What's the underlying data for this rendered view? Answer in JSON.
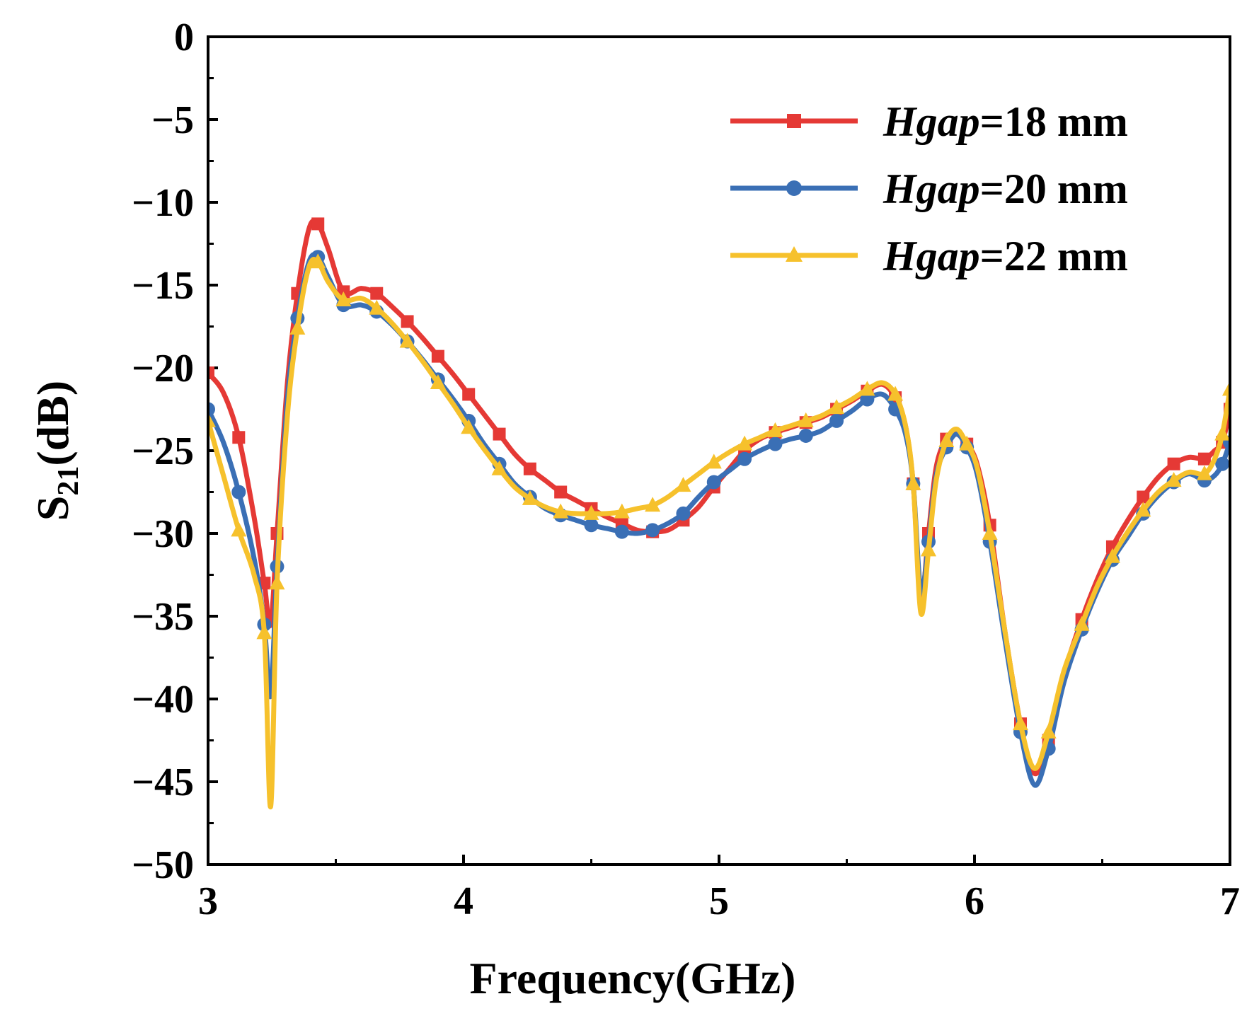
{
  "chart_data": {
    "type": "line",
    "title": "",
    "xlabel": "Frequency(GHz)",
    "ylabel_main": "S",
    "ylabel_sub": "21",
    "ylabel_unit": "(dB)",
    "xlim": [
      3,
      7
    ],
    "ylim": [
      -50,
      0
    ],
    "xticks": [
      3,
      4,
      5,
      6,
      7
    ],
    "yticks": [
      0,
      -5,
      -10,
      -15,
      -20,
      -25,
      -30,
      -35,
      -40,
      -45,
      -50
    ],
    "xtick_labels": [
      "3",
      "4",
      "5",
      "6",
      "7"
    ],
    "ytick_labels": [
      "0",
      "−5",
      "−10",
      "−15",
      "−20",
      "−25",
      "−30",
      "−35",
      "−40",
      "−45",
      "−50"
    ],
    "legend_position": "top-right",
    "series": [
      {
        "name_italic": "Hgap",
        "name_rest": "=18 mm",
        "color": "#E53935",
        "marker": "square",
        "points": [
          [
            3.0,
            -20.3
          ],
          [
            3.06,
            -21.5
          ],
          [
            3.12,
            -24.2
          ],
          [
            3.18,
            -29.0
          ],
          [
            3.22,
            -33.0
          ],
          [
            3.245,
            -35.5
          ],
          [
            3.27,
            -30.0
          ],
          [
            3.31,
            -21.0
          ],
          [
            3.35,
            -15.5
          ],
          [
            3.395,
            -11.6
          ],
          [
            3.43,
            -11.3
          ],
          [
            3.47,
            -12.8
          ],
          [
            3.53,
            -15.4
          ],
          [
            3.6,
            -15.2
          ],
          [
            3.66,
            -15.5
          ],
          [
            3.72,
            -16.3
          ],
          [
            3.78,
            -17.2
          ],
          [
            3.84,
            -18.2
          ],
          [
            3.9,
            -19.3
          ],
          [
            3.96,
            -20.4
          ],
          [
            4.02,
            -21.6
          ],
          [
            4.08,
            -22.8
          ],
          [
            4.14,
            -24.0
          ],
          [
            4.2,
            -25.2
          ],
          [
            4.26,
            -26.1
          ],
          [
            4.32,
            -26.8
          ],
          [
            4.38,
            -27.5
          ],
          [
            4.44,
            -28.0
          ],
          [
            4.5,
            -28.5
          ],
          [
            4.56,
            -29.0
          ],
          [
            4.62,
            -29.4
          ],
          [
            4.68,
            -29.8
          ],
          [
            4.74,
            -29.9
          ],
          [
            4.8,
            -29.8
          ],
          [
            4.86,
            -29.2
          ],
          [
            4.92,
            -28.4
          ],
          [
            4.98,
            -27.2
          ],
          [
            5.04,
            -26.1
          ],
          [
            5.1,
            -25.0
          ],
          [
            5.16,
            -24.3
          ],
          [
            5.22,
            -23.9
          ],
          [
            5.28,
            -23.6
          ],
          [
            5.34,
            -23.3
          ],
          [
            5.4,
            -23.0
          ],
          [
            5.46,
            -22.5
          ],
          [
            5.52,
            -22.0
          ],
          [
            5.58,
            -21.4
          ],
          [
            5.64,
            -21.0
          ],
          [
            5.69,
            -21.8
          ],
          [
            5.73,
            -23.5
          ],
          [
            5.76,
            -27.0
          ],
          [
            5.79,
            -34.0
          ],
          [
            5.82,
            -30.0
          ],
          [
            5.85,
            -26.0
          ],
          [
            5.89,
            -24.3
          ],
          [
            5.93,
            -24.0
          ],
          [
            5.97,
            -24.6
          ],
          [
            6.01,
            -25.8
          ],
          [
            6.06,
            -29.5
          ],
          [
            6.12,
            -36.0
          ],
          [
            6.18,
            -41.5
          ],
          [
            6.235,
            -44.5
          ],
          [
            6.29,
            -42.5
          ],
          [
            6.35,
            -38.5
          ],
          [
            6.42,
            -35.2
          ],
          [
            6.48,
            -32.8
          ],
          [
            6.54,
            -30.8
          ],
          [
            6.6,
            -29.2
          ],
          [
            6.66,
            -27.8
          ],
          [
            6.72,
            -26.6
          ],
          [
            6.78,
            -25.8
          ],
          [
            6.84,
            -25.4
          ],
          [
            6.9,
            -25.5
          ],
          [
            6.94,
            -25.0
          ],
          [
            6.97,
            -24.5
          ],
          [
            7.0,
            -22.5
          ]
        ]
      },
      {
        "name_italic": "Hgap",
        "name_rest": "=20 mm",
        "color": "#3A6FB5",
        "marker": "circle",
        "points": [
          [
            3.0,
            -22.5
          ],
          [
            3.06,
            -24.5
          ],
          [
            3.12,
            -27.5
          ],
          [
            3.18,
            -31.5
          ],
          [
            3.22,
            -35.5
          ],
          [
            3.245,
            -39.8
          ],
          [
            3.27,
            -32.0
          ],
          [
            3.31,
            -22.0
          ],
          [
            3.35,
            -17.0
          ],
          [
            3.395,
            -13.6
          ],
          [
            3.43,
            -13.3
          ],
          [
            3.47,
            -14.5
          ],
          [
            3.53,
            -16.2
          ],
          [
            3.6,
            -16.2
          ],
          [
            3.66,
            -16.6
          ],
          [
            3.72,
            -17.4
          ],
          [
            3.78,
            -18.4
          ],
          [
            3.84,
            -19.5
          ],
          [
            3.9,
            -20.7
          ],
          [
            3.96,
            -21.9
          ],
          [
            4.02,
            -23.2
          ],
          [
            4.08,
            -24.6
          ],
          [
            4.14,
            -25.8
          ],
          [
            4.2,
            -27.0
          ],
          [
            4.26,
            -27.8
          ],
          [
            4.32,
            -28.5
          ],
          [
            4.38,
            -28.9
          ],
          [
            4.44,
            -29.2
          ],
          [
            4.5,
            -29.5
          ],
          [
            4.56,
            -29.7
          ],
          [
            4.62,
            -29.9
          ],
          [
            4.68,
            -30.0
          ],
          [
            4.74,
            -29.8
          ],
          [
            4.8,
            -29.4
          ],
          [
            4.86,
            -28.8
          ],
          [
            4.92,
            -27.8
          ],
          [
            4.98,
            -26.9
          ],
          [
            5.04,
            -26.2
          ],
          [
            5.1,
            -25.5
          ],
          [
            5.16,
            -25.0
          ],
          [
            5.22,
            -24.6
          ],
          [
            5.28,
            -24.3
          ],
          [
            5.34,
            -24.1
          ],
          [
            5.4,
            -23.8
          ],
          [
            5.46,
            -23.2
          ],
          [
            5.52,
            -22.6
          ],
          [
            5.58,
            -21.9
          ],
          [
            5.64,
            -21.6
          ],
          [
            5.69,
            -22.5
          ],
          [
            5.73,
            -24.0
          ],
          [
            5.76,
            -27.0
          ],
          [
            5.79,
            -33.5
          ],
          [
            5.82,
            -30.5
          ],
          [
            5.85,
            -26.5
          ],
          [
            5.89,
            -24.8
          ],
          [
            5.93,
            -24.0
          ],
          [
            5.97,
            -24.8
          ],
          [
            6.01,
            -26.4
          ],
          [
            6.06,
            -30.5
          ],
          [
            6.12,
            -36.5
          ],
          [
            6.18,
            -42.0
          ],
          [
            6.235,
            -45.2
          ],
          [
            6.29,
            -43.0
          ],
          [
            6.35,
            -39.0
          ],
          [
            6.42,
            -35.8
          ],
          [
            6.48,
            -33.5
          ],
          [
            6.54,
            -31.6
          ],
          [
            6.6,
            -30.2
          ],
          [
            6.66,
            -28.8
          ],
          [
            6.72,
            -27.7
          ],
          [
            6.78,
            -26.9
          ],
          [
            6.84,
            -26.4
          ],
          [
            6.9,
            -26.8
          ],
          [
            6.94,
            -26.5
          ],
          [
            6.97,
            -25.8
          ],
          [
            7.0,
            -24.5
          ]
        ]
      },
      {
        "name_italic": "Hgap",
        "name_rest": "=22 mm",
        "color": "#F6C12C",
        "marker": "triangle",
        "points": [
          [
            3.0,
            -23.2
          ],
          [
            3.06,
            -26.5
          ],
          [
            3.12,
            -29.8
          ],
          [
            3.18,
            -32.5
          ],
          [
            3.22,
            -36.0
          ],
          [
            3.245,
            -46.5
          ],
          [
            3.27,
            -33.0
          ],
          [
            3.31,
            -23.0
          ],
          [
            3.35,
            -17.6
          ],
          [
            3.395,
            -13.9
          ],
          [
            3.43,
            -13.6
          ],
          [
            3.47,
            -14.8
          ],
          [
            3.53,
            -15.9
          ],
          [
            3.6,
            -15.8
          ],
          [
            3.66,
            -16.4
          ],
          [
            3.72,
            -17.3
          ],
          [
            3.78,
            -18.4
          ],
          [
            3.84,
            -19.6
          ],
          [
            3.9,
            -20.9
          ],
          [
            3.96,
            -22.2
          ],
          [
            4.02,
            -23.6
          ],
          [
            4.08,
            -24.9
          ],
          [
            4.14,
            -26.1
          ],
          [
            4.2,
            -27.2
          ],
          [
            4.26,
            -27.9
          ],
          [
            4.32,
            -28.4
          ],
          [
            4.38,
            -28.7
          ],
          [
            4.44,
            -28.8
          ],
          [
            4.5,
            -28.8
          ],
          [
            4.56,
            -28.8
          ],
          [
            4.62,
            -28.7
          ],
          [
            4.68,
            -28.5
          ],
          [
            4.74,
            -28.3
          ],
          [
            4.8,
            -27.8
          ],
          [
            4.86,
            -27.1
          ],
          [
            4.92,
            -26.4
          ],
          [
            4.98,
            -25.7
          ],
          [
            5.04,
            -25.1
          ],
          [
            5.1,
            -24.6
          ],
          [
            5.16,
            -24.2
          ],
          [
            5.22,
            -23.8
          ],
          [
            5.28,
            -23.5
          ],
          [
            5.34,
            -23.2
          ],
          [
            5.4,
            -22.9
          ],
          [
            5.46,
            -22.4
          ],
          [
            5.52,
            -21.9
          ],
          [
            5.58,
            -21.3
          ],
          [
            5.64,
            -20.9
          ],
          [
            5.69,
            -21.6
          ],
          [
            5.73,
            -23.5
          ],
          [
            5.76,
            -27.0
          ],
          [
            5.79,
            -34.8
          ],
          [
            5.82,
            -31.0
          ],
          [
            5.85,
            -26.8
          ],
          [
            5.89,
            -24.4
          ],
          [
            5.93,
            -23.7
          ],
          [
            5.97,
            -24.6
          ],
          [
            6.01,
            -26.0
          ],
          [
            6.06,
            -30.0
          ],
          [
            6.12,
            -36.0
          ],
          [
            6.18,
            -41.5
          ],
          [
            6.235,
            -44.2
          ],
          [
            6.29,
            -42.0
          ],
          [
            6.35,
            -38.3
          ],
          [
            6.42,
            -35.5
          ],
          [
            6.48,
            -33.2
          ],
          [
            6.54,
            -31.4
          ],
          [
            6.6,
            -29.9
          ],
          [
            6.66,
            -28.6
          ],
          [
            6.72,
            -27.5
          ],
          [
            6.78,
            -26.8
          ],
          [
            6.84,
            -26.3
          ],
          [
            6.9,
            -26.4
          ],
          [
            6.94,
            -25.5
          ],
          [
            6.97,
            -24.0
          ],
          [
            7.0,
            -21.3
          ]
        ]
      }
    ]
  }
}
